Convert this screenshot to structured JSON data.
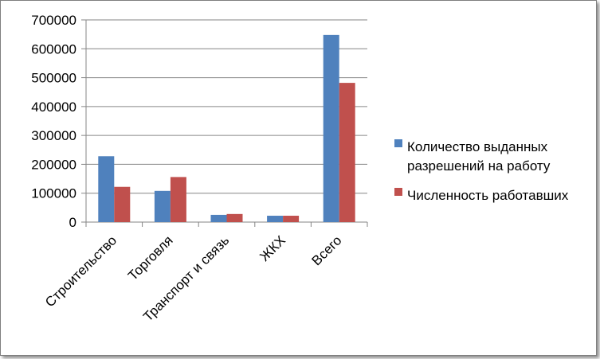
{
  "chart_data": {
    "type": "bar",
    "categories": [
      "Строительство",
      "Торговля",
      "Транспорт и связь",
      "ЖКХ",
      "Всего"
    ],
    "series": [
      {
        "name": "Количество выданных разрешений на работу",
        "name_lines": [
          "Количество выданных",
          "разрешений на работу"
        ],
        "color": "#4f81bd",
        "values": [
          228000,
          108000,
          25000,
          22000,
          648000
        ]
      },
      {
        "name": "Численность работавших",
        "name_lines": [
          "Численность работавших"
        ],
        "color": "#c0504d",
        "values": [
          122000,
          156000,
          28000,
          22000,
          482000
        ]
      }
    ],
    "yticks": [
      "0",
      "100000",
      "200000",
      "300000",
      "400000",
      "500000",
      "600000",
      "700000"
    ],
    "ylim": [
      0,
      700000
    ],
    "ytick_step": 100000,
    "title": "",
    "xlabel": "",
    "ylabel": "",
    "grid": "horizontal major",
    "legend_position": "right",
    "colors": {
      "gridline": "#868686",
      "axis": "#868686"
    }
  }
}
